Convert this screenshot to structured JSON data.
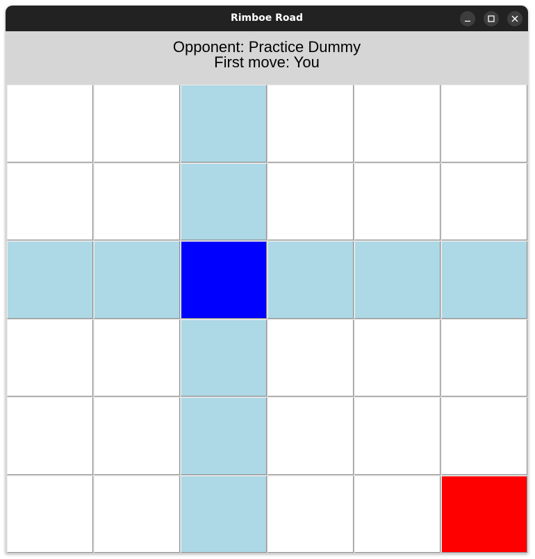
{
  "window": {
    "title": "Rimboe Road",
    "controls": [
      "minimize-icon",
      "maximize-icon",
      "close-icon"
    ]
  },
  "header": {
    "opponent": "Opponent: Practice Dummy",
    "first_move": "First move: You"
  },
  "colors": {
    "empty": "#ffffff",
    "highlight": "#add8e6",
    "player": "#0000ff",
    "opponent": "#ff0000"
  },
  "board": {
    "rows": 6,
    "cols": 6,
    "cells": [
      [
        "empty",
        "empty",
        "highlight",
        "empty",
        "empty",
        "empty"
      ],
      [
        "empty",
        "empty",
        "highlight",
        "empty",
        "empty",
        "empty"
      ],
      [
        "highlight",
        "highlight",
        "player",
        "highlight",
        "highlight",
        "highlight"
      ],
      [
        "empty",
        "empty",
        "highlight",
        "empty",
        "empty",
        "empty"
      ],
      [
        "empty",
        "empty",
        "highlight",
        "empty",
        "empty",
        "empty"
      ],
      [
        "empty",
        "empty",
        "highlight",
        "empty",
        "empty",
        "opponent"
      ]
    ]
  }
}
